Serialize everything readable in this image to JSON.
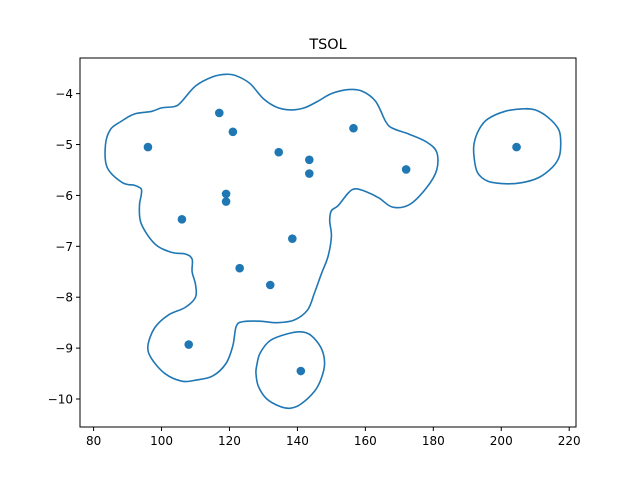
{
  "chart_data": {
    "type": "scatter",
    "title": "TSOL",
    "xlabel": "",
    "ylabel": "",
    "xlim": [
      76,
      222
    ],
    "ylim": [
      -10.55,
      -3.3
    ],
    "x_ticks": [
      80,
      100,
      120,
      140,
      160,
      180,
      200,
      220
    ],
    "y_ticks": [
      -4,
      -5,
      -6,
      -7,
      -8,
      -9,
      -10
    ],
    "x_tick_labels": [
      "80",
      "100",
      "120",
      "140",
      "160",
      "180",
      "200",
      "220"
    ],
    "y_tick_labels": [
      "−4",
      "−5",
      "−6",
      "−7",
      "−8",
      "−9",
      "−10"
    ],
    "grid": false,
    "color": "#1f77b4",
    "points": [
      {
        "x": 96,
        "y": -5.05
      },
      {
        "x": 117,
        "y": -4.38
      },
      {
        "x": 121,
        "y": -4.75
      },
      {
        "x": 134.5,
        "y": -5.15
      },
      {
        "x": 143.5,
        "y": -5.3
      },
      {
        "x": 143.5,
        "y": -5.57
      },
      {
        "x": 156.5,
        "y": -4.68
      },
      {
        "x": 172,
        "y": -5.49
      },
      {
        "x": 204.5,
        "y": -5.05
      },
      {
        "x": 119,
        "y": -5.97
      },
      {
        "x": 119,
        "y": -6.12
      },
      {
        "x": 106,
        "y": -6.47
      },
      {
        "x": 138.5,
        "y": -6.85
      },
      {
        "x": 123,
        "y": -7.43
      },
      {
        "x": 132,
        "y": -7.76
      },
      {
        "x": 108,
        "y": -8.93
      },
      {
        "x": 141,
        "y": -9.45
      }
    ],
    "contours": [
      [
        [
          97,
          -4.35
        ],
        [
          100,
          -4.28
        ],
        [
          104,
          -4.25
        ],
        [
          106,
          -4.15
        ],
        [
          110,
          -3.85
        ],
        [
          115,
          -3.67
        ],
        [
          119,
          -3.62
        ],
        [
          122,
          -3.65
        ],
        [
          126,
          -3.8
        ],
        [
          130,
          -4.1
        ],
        [
          134,
          -4.27
        ],
        [
          138,
          -4.32
        ],
        [
          142,
          -4.28
        ],
        [
          146,
          -4.15
        ],
        [
          150,
          -4.0
        ],
        [
          155,
          -3.92
        ],
        [
          159,
          -3.95
        ],
        [
          163,
          -4.15
        ],
        [
          166,
          -4.55
        ],
        [
          168,
          -4.68
        ],
        [
          173,
          -4.8
        ],
        [
          178,
          -4.95
        ],
        [
          181,
          -5.15
        ],
        [
          181,
          -5.5
        ],
        [
          178,
          -5.85
        ],
        [
          173,
          -6.18
        ],
        [
          168,
          -6.23
        ],
        [
          164,
          -6.05
        ],
        [
          160,
          -5.92
        ],
        [
          157,
          -5.87
        ],
        [
          155,
          -5.95
        ],
        [
          152,
          -6.2
        ],
        [
          150,
          -6.3
        ],
        [
          149.5,
          -6.5
        ],
        [
          150,
          -6.8
        ],
        [
          149,
          -7.2
        ],
        [
          147,
          -7.55
        ],
        [
          145,
          -7.92
        ],
        [
          143,
          -8.25
        ],
        [
          139,
          -8.45
        ],
        [
          134,
          -8.5
        ],
        [
          129,
          -8.47
        ],
        [
          124,
          -8.48
        ],
        [
          122,
          -8.57
        ],
        [
          121,
          -8.95
        ],
        [
          119,
          -9.3
        ],
        [
          115,
          -9.55
        ],
        [
          110,
          -9.63
        ],
        [
          106,
          -9.65
        ],
        [
          101,
          -9.5
        ],
        [
          97,
          -9.2
        ],
        [
          96,
          -8.95
        ],
        [
          98,
          -8.6
        ],
        [
          102,
          -8.35
        ],
        [
          107,
          -8.2
        ],
        [
          110,
          -8.0
        ],
        [
          110,
          -7.75
        ],
        [
          109,
          -7.5
        ],
        [
          109,
          -7.25
        ],
        [
          107,
          -7.15
        ],
        [
          103,
          -7.12
        ],
        [
          98,
          -6.95
        ],
        [
          94,
          -6.55
        ],
        [
          93.5,
          -6.2
        ],
        [
          94,
          -6.0
        ],
        [
          94,
          -5.87
        ],
        [
          92,
          -5.8
        ],
        [
          88.5,
          -5.75
        ],
        [
          84,
          -5.45
        ],
        [
          83.5,
          -5.0
        ],
        [
          85,
          -4.7
        ],
        [
          88,
          -4.55
        ],
        [
          92,
          -4.4
        ]
      ],
      [
        [
          192,
          -4.98
        ],
        [
          193.5,
          -4.7
        ],
        [
          196,
          -4.5
        ],
        [
          201,
          -4.35
        ],
        [
          206,
          -4.3
        ],
        [
          210,
          -4.32
        ],
        [
          214,
          -4.48
        ],
        [
          217,
          -4.72
        ],
        [
          217.5,
          -5.0
        ],
        [
          217,
          -5.25
        ],
        [
          215,
          -5.45
        ],
        [
          211,
          -5.65
        ],
        [
          206,
          -5.75
        ],
        [
          201,
          -5.77
        ],
        [
          196,
          -5.72
        ],
        [
          193,
          -5.55
        ],
        [
          192,
          -5.25
        ]
      ],
      [
        [
          128,
          -9.35
        ],
        [
          129,
          -9.1
        ],
        [
          132,
          -8.85
        ],
        [
          137,
          -8.72
        ],
        [
          141,
          -8.68
        ],
        [
          144,
          -8.75
        ],
        [
          147,
          -9.0
        ],
        [
          148,
          -9.3
        ],
        [
          147,
          -9.6
        ],
        [
          145,
          -9.85
        ],
        [
          141,
          -10.1
        ],
        [
          138,
          -10.18
        ],
        [
          135,
          -10.15
        ],
        [
          131,
          -10.0
        ],
        [
          128.5,
          -9.75
        ],
        [
          127.8,
          -9.5
        ]
      ]
    ]
  }
}
